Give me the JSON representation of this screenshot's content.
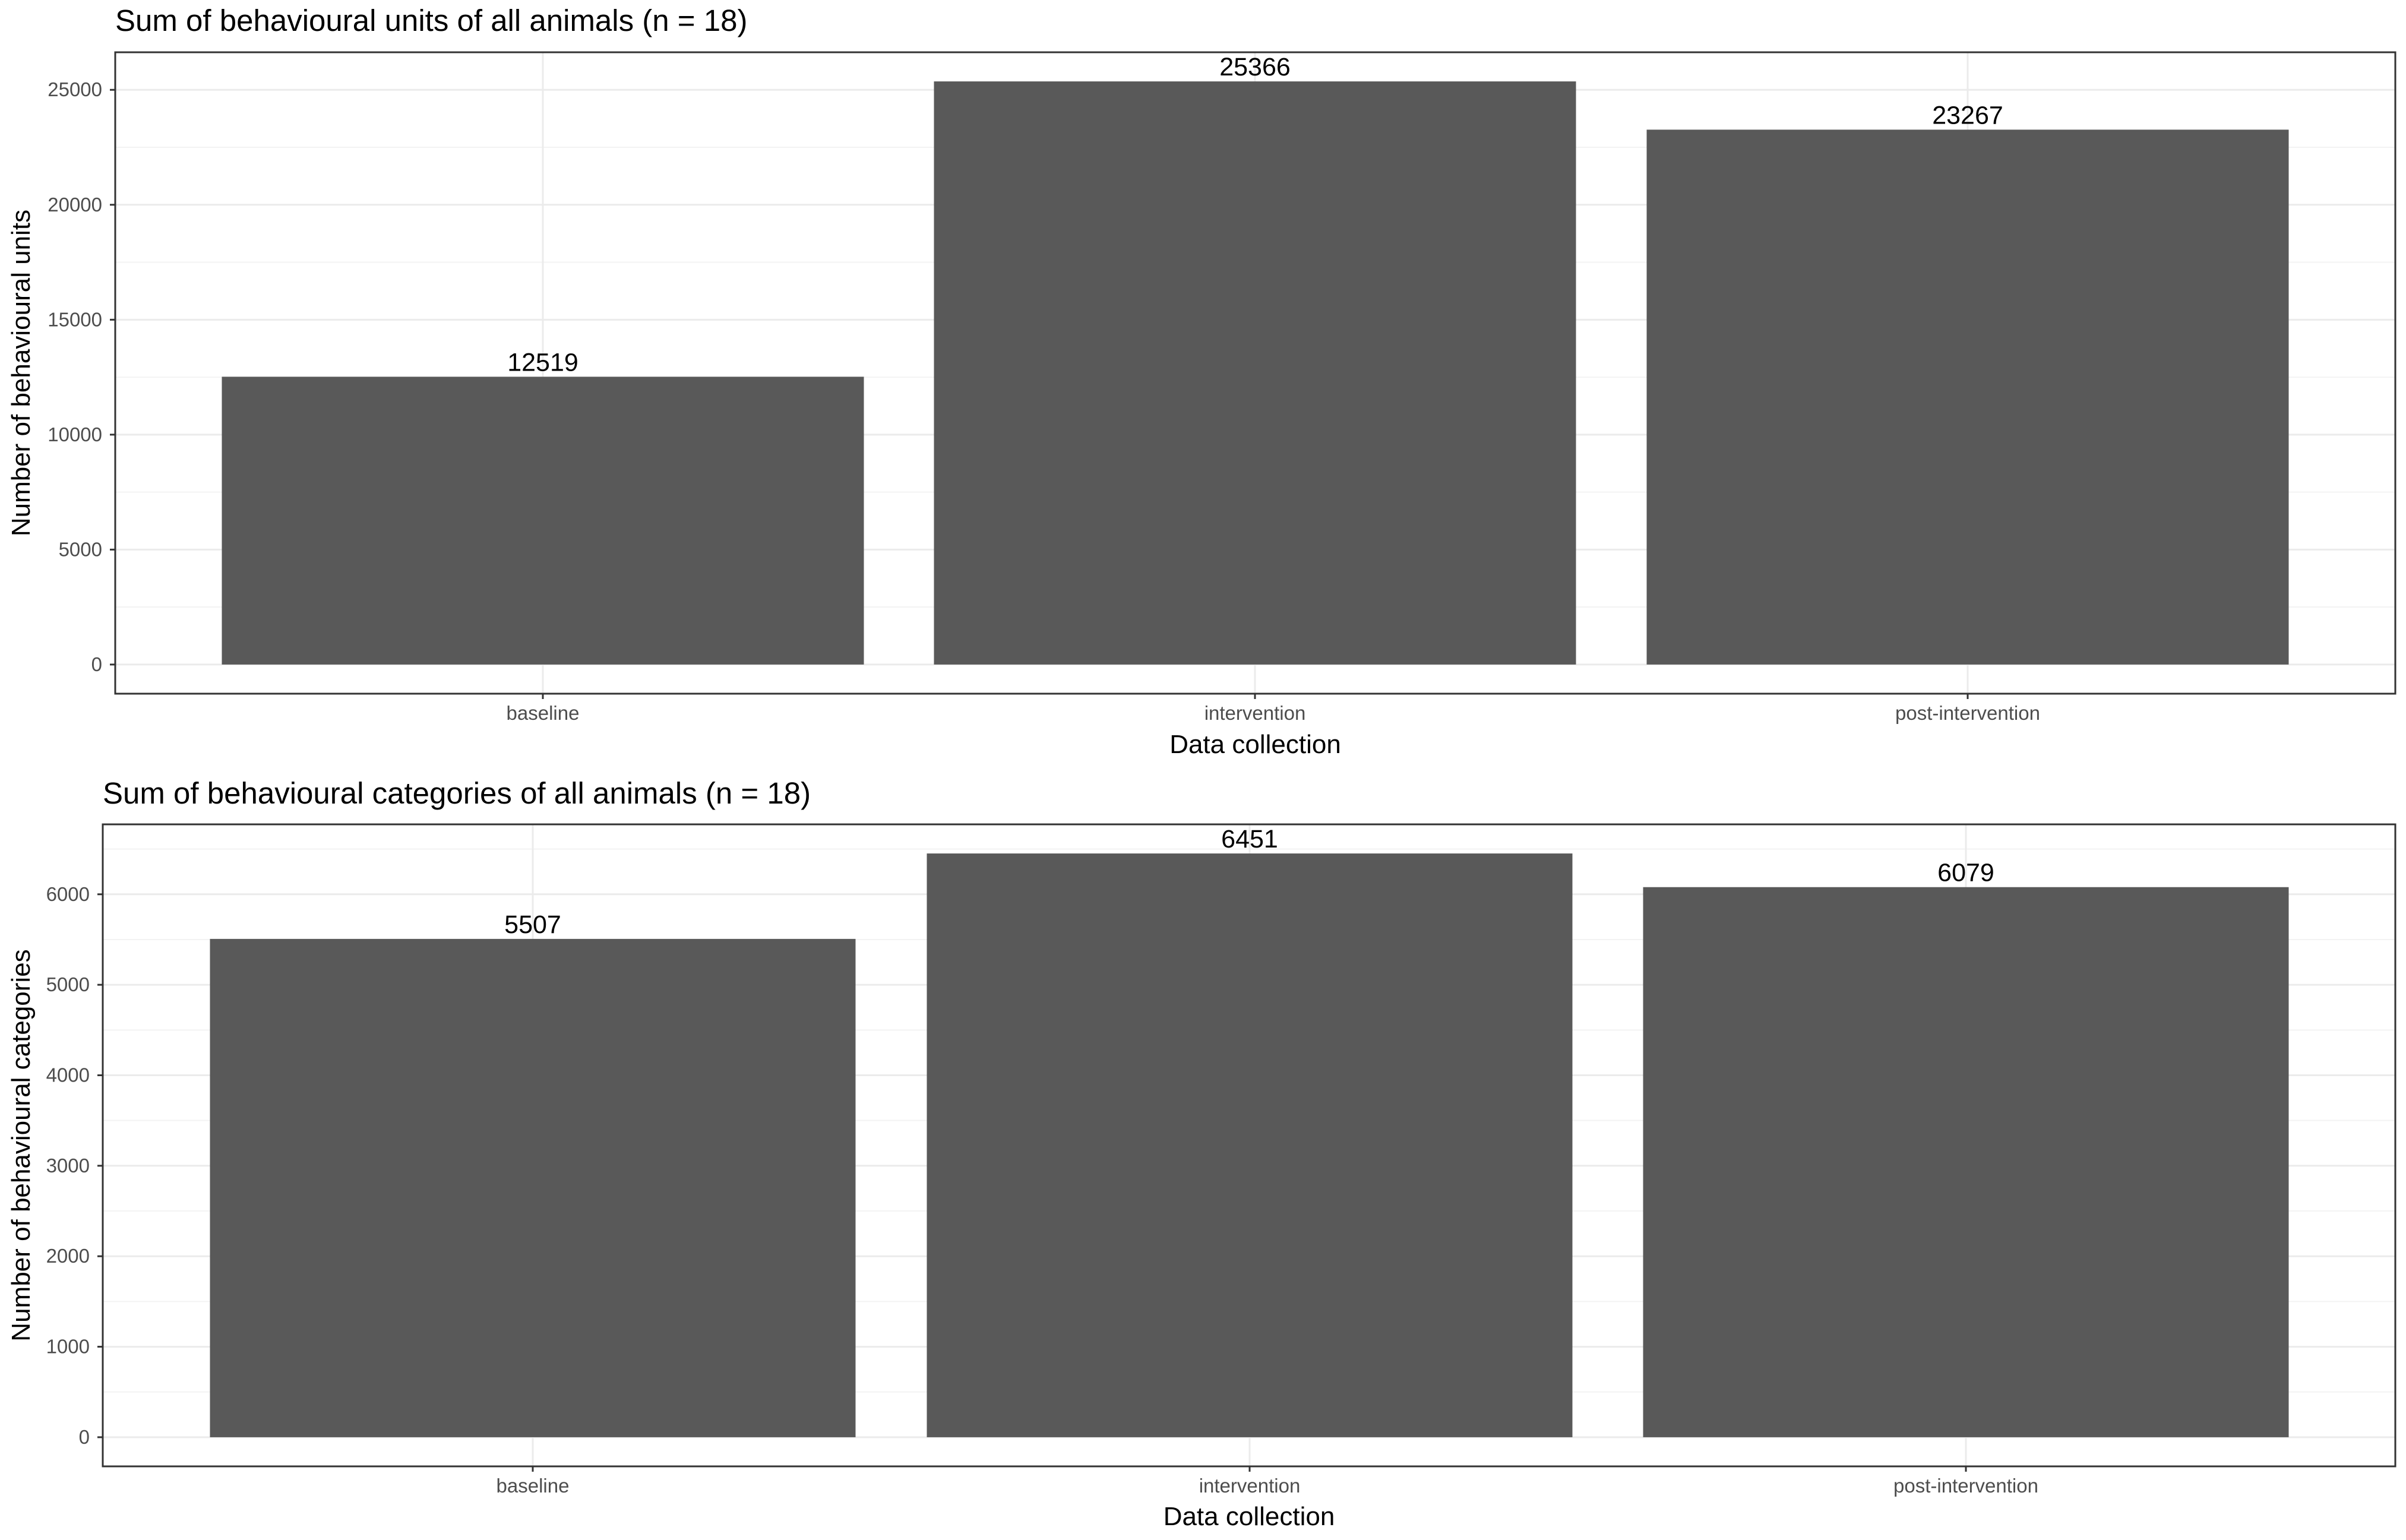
{
  "chart_data": [
    {
      "type": "bar",
      "title": "Sum of behavioural units of all animals (n = 18)",
      "xlabel": "Data collection",
      "ylabel": "Number of behavioural units",
      "categories": [
        "baseline",
        "intervention",
        "post-intervention"
      ],
      "values": [
        12519,
        25366,
        23267
      ],
      "data_labels": [
        "12519",
        "25366",
        "23267"
      ],
      "yticks": [
        0,
        5000,
        10000,
        15000,
        20000,
        25000
      ],
      "ytick_labels": [
        "0",
        "5000",
        "10000",
        "15000",
        "20000",
        "25000"
      ],
      "ylim": [
        -1268,
        26634
      ],
      "grid": true,
      "legend": "none",
      "bar_color": "#595959"
    },
    {
      "type": "bar",
      "title": "Sum of behavioural categories of all animals (n = 18)",
      "xlabel": "Data collection",
      "ylabel": "Number of behavioural categories",
      "categories": [
        "baseline",
        "intervention",
        "post-intervention"
      ],
      "values": [
        5507,
        6451,
        6079
      ],
      "data_labels": [
        "5507",
        "6451",
        "6079"
      ],
      "yticks": [
        0,
        1000,
        2000,
        3000,
        4000,
        5000,
        6000
      ],
      "ytick_labels": [
        "0",
        "1000",
        "2000",
        "3000",
        "4000",
        "5000",
        "6000"
      ],
      "ylim": [
        -322,
        6773
      ],
      "grid": true,
      "legend": "none",
      "bar_color": "#595959"
    }
  ]
}
